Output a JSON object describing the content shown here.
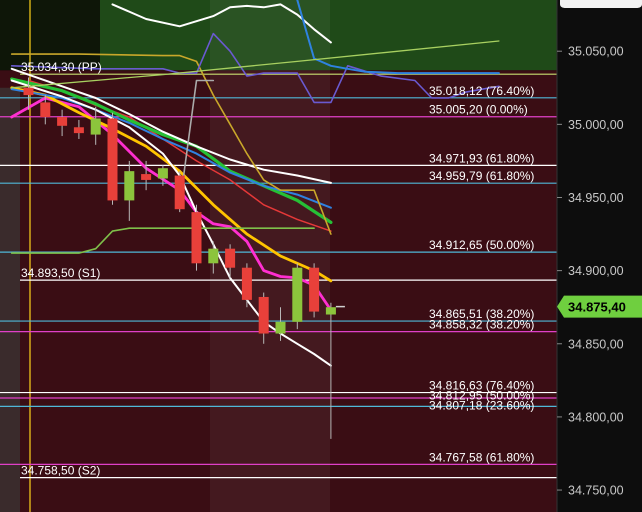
{
  "colors": {
    "background": "#0b0406",
    "zone_bear": "#3a0d14",
    "zone_bull": "#1f4a18",
    "candle_up": "#8cc43c",
    "candle_down": "#e8403a",
    "price_tag": "#6fcf3f",
    "axis_panel": "#111111"
  },
  "current_price_tag": "34.875,40",
  "chart_data": {
    "type": "candlestick",
    "ylim": [
      34735,
      35085
    ],
    "y_ticks": [
      {
        "value": 35050,
        "label": "35.050,00"
      },
      {
        "value": 35000,
        "label": "35.000,00"
      },
      {
        "value": 34950,
        "label": "34.950,00"
      },
      {
        "value": 34900,
        "label": "34.900,00"
      },
      {
        "value": 34850,
        "label": "34.850,00"
      },
      {
        "value": 34800,
        "label": "34.800,00"
      },
      {
        "value": 34750,
        "label": "34.750,00"
      }
    ],
    "current_price": 34875.4,
    "levels": [
      {
        "value": 35034.3,
        "label": "35.034,30 (PP)",
        "color": "#c8e070",
        "label_side": "left"
      },
      {
        "value": 35018.12,
        "label": "35.018,12 (76.40%)",
        "color": "#4fb8d8",
        "label_side": "right"
      },
      {
        "value": 35005.2,
        "label": "35.005,20 (0.00%)",
        "color": "#e040c8",
        "label_side": "right"
      },
      {
        "value": 34971.93,
        "label": "34.971,93 (61.80%)",
        "color": "#ffffff",
        "label_side": "right"
      },
      {
        "value": 34959.79,
        "label": "34.959,79 (61.80%)",
        "color": "#4fb8d8",
        "label_side": "right"
      },
      {
        "value": 34912.65,
        "label": "34.912,65 (50.00%)",
        "color": "#4fb8d8",
        "label_side": "right"
      },
      {
        "value": 34893.5,
        "label": "34.893,50 (S1)",
        "color": "#ffffff",
        "label_side": "left"
      },
      {
        "value": 34865.51,
        "label": "34.865,51 (38.20%)",
        "color": "#4fb8d8",
        "label_side": "right"
      },
      {
        "value": 34858.32,
        "label": "34.858,32 (38.20%)",
        "color": "#e040c8",
        "label_side": "right"
      },
      {
        "value": 34816.63,
        "label": "34.816,63 (76.40%)",
        "color": "#ffffff",
        "label_side": "right"
      },
      {
        "value": 34812.95,
        "label": "34.812,95 (50.00%)",
        "color": "#e040c8",
        "label_side": "right"
      },
      {
        "value": 34807.18,
        "label": "34.807,18 (23.60%)",
        "color": "#4fb8d8",
        "label_side": "right"
      },
      {
        "value": 34767.58,
        "label": "34.767,58 (61.80%)",
        "color": "#e040c8",
        "label_side": "right"
      },
      {
        "value": 34758.5,
        "label": "34.758,50 (S2)",
        "color": "#ffffff",
        "label_side": "left"
      }
    ],
    "candles": [
      {
        "o": 35025,
        "h": 35032,
        "l": 35010,
        "c": 35020
      },
      {
        "o": 35015,
        "h": 35020,
        "l": 35000,
        "c": 35005
      },
      {
        "o": 35005,
        "h": 35010,
        "l": 34992,
        "c": 34999
      },
      {
        "o": 34998,
        "h": 35003,
        "l": 34990,
        "c": 34994
      },
      {
        "o": 34993,
        "h": 35012,
        "l": 34986,
        "c": 35004
      },
      {
        "o": 35004,
        "h": 35008,
        "l": 34945,
        "c": 34948
      },
      {
        "o": 34948,
        "h": 34975,
        "l": 34934,
        "c": 34968
      },
      {
        "o": 34966,
        "h": 34975,
        "l": 34955,
        "c": 34962
      },
      {
        "o": 34963,
        "h": 34972,
        "l": 34958,
        "c": 34970
      },
      {
        "o": 34965,
        "h": 34968,
        "l": 34940,
        "c": 34942
      },
      {
        "o": 34940,
        "h": 34945,
        "l": 34900,
        "c": 34905
      },
      {
        "o": 34905,
        "h": 34920,
        "l": 34898,
        "c": 34915
      },
      {
        "o": 34915,
        "h": 34918,
        "l": 34895,
        "c": 34902
      },
      {
        "o": 34902,
        "h": 34905,
        "l": 34875,
        "c": 34880
      },
      {
        "o": 34882,
        "h": 34885,
        "l": 34850,
        "c": 34857
      },
      {
        "o": 34857,
        "h": 34875,
        "l": 34852,
        "c": 34865
      },
      {
        "o": 34865,
        "h": 34905,
        "l": 34860,
        "c": 34902
      },
      {
        "o": 34902,
        "h": 34905,
        "l": 34868,
        "c": 34872
      },
      {
        "o": 34870,
        "h": 34878,
        "l": 34785,
        "c": 34875
      }
    ],
    "lines": [
      {
        "color": "#e53838",
        "width": 1.5,
        "points": [
          [
            0,
            35030
          ],
          [
            2,
            35023
          ],
          [
            4,
            35013
          ],
          [
            6,
            35005
          ],
          [
            8,
            34990
          ],
          [
            10,
            34975
          ],
          [
            12,
            34962
          ],
          [
            14,
            34945
          ],
          [
            16,
            34935
          ],
          [
            18,
            34927
          ]
        ]
      },
      {
        "color": "#ff2fd0",
        "width": 2.8,
        "points": [
          [
            -1,
            35005
          ],
          [
            1,
            35018
          ],
          [
            3,
            35012
          ],
          [
            5,
            34993
          ],
          [
            7,
            34970
          ],
          [
            9,
            34955
          ],
          [
            10,
            34940
          ],
          [
            11,
            34932
          ],
          [
            12,
            34930
          ],
          [
            13,
            34920
          ],
          [
            14,
            34900
          ],
          [
            15,
            34896
          ],
          [
            16,
            34895
          ],
          [
            17,
            34890
          ],
          [
            18,
            34873
          ]
        ]
      },
      {
        "color": "#ffc400",
        "width": 2.8,
        "points": [
          [
            -1,
            35025
          ],
          [
            1,
            35020
          ],
          [
            3,
            35008
          ],
          [
            5,
            34997
          ],
          [
            7,
            34985
          ],
          [
            9,
            34968
          ],
          [
            11,
            34945
          ],
          [
            13,
            34925
          ],
          [
            15,
            34910
          ],
          [
            17,
            34900
          ],
          [
            18,
            34893
          ]
        ]
      },
      {
        "color": "#26c036",
        "width": 3.2,
        "points": [
          [
            -1,
            35031
          ],
          [
            2,
            35023
          ],
          [
            4,
            35014
          ],
          [
            6,
            35003
          ],
          [
            8,
            34993
          ],
          [
            10,
            34985
          ],
          [
            12,
            34968
          ],
          [
            14,
            34958
          ],
          [
            16,
            34948
          ],
          [
            18,
            34933
          ]
        ]
      },
      {
        "color": "#2f82e0",
        "width": 2,
        "points": [
          [
            -1,
            35024
          ],
          [
            2,
            35018
          ],
          [
            4,
            35010
          ],
          [
            6,
            35001
          ],
          [
            8,
            34990
          ],
          [
            10,
            34980
          ],
          [
            12,
            34967
          ],
          [
            14,
            34958
          ],
          [
            16,
            34952
          ],
          [
            18,
            34943
          ]
        ]
      },
      {
        "color": "#ffffff",
        "width": 2,
        "points": [
          [
            -1,
            35038
          ],
          [
            2,
            35026
          ],
          [
            4,
            35018
          ],
          [
            6,
            35007
          ],
          [
            8,
            34995
          ],
          [
            10,
            34985
          ],
          [
            12,
            34976
          ],
          [
            14,
            34969
          ],
          [
            16,
            34965
          ],
          [
            18,
            34960
          ]
        ]
      },
      {
        "color": "#ffffff",
        "width": 2,
        "points": [
          [
            -1,
            35030
          ],
          [
            2,
            35019
          ],
          [
            4,
            35010
          ],
          [
            6,
            34998
          ],
          [
            8,
            34980
          ],
          [
            9,
            34965
          ],
          [
            10,
            34940
          ],
          [
            11,
            34918
          ],
          [
            12,
            34895
          ],
          [
            13,
            34880
          ],
          [
            14,
            34865
          ],
          [
            15,
            34857
          ],
          [
            16,
            34850
          ],
          [
            17,
            34843
          ],
          [
            18,
            34835
          ]
        ]
      },
      {
        "color": "#ffffff",
        "width": 2,
        "points": [
          [
            5,
            35082
          ],
          [
            7,
            35072
          ],
          [
            9,
            35067
          ],
          [
            11,
            35074
          ],
          [
            12,
            35080
          ],
          [
            13,
            35081
          ],
          [
            14,
            35080
          ],
          [
            15,
            35082
          ],
          [
            16,
            35075
          ],
          [
            17,
            35065
          ],
          [
            18,
            35056
          ]
        ]
      },
      {
        "color": "#c9a72a",
        "width": 1.6,
        "points": [
          [
            -1,
            35048
          ],
          [
            3,
            35048
          ],
          [
            8,
            35047
          ],
          [
            9,
            35047
          ],
          [
            10,
            35043
          ],
          [
            11,
            35020
          ],
          [
            12,
            35000
          ],
          [
            13,
            34980
          ],
          [
            14,
            34962
          ],
          [
            15,
            34955
          ],
          [
            16,
            34955
          ],
          [
            17,
            34955
          ],
          [
            18,
            34925
          ]
        ]
      },
      {
        "color": "#aaaaaa",
        "width": 1.6,
        "points": [
          [
            9,
            34945
          ],
          [
            10,
            35030
          ],
          [
            11,
            35030
          ]
        ]
      },
      {
        "color": "#7fc04a",
        "width": 1.6,
        "points": [
          [
            -1,
            34912
          ],
          [
            3,
            34912
          ],
          [
            4,
            34915
          ],
          [
            5,
            34927
          ],
          [
            6,
            34929
          ],
          [
            16,
            34929
          ],
          [
            17,
            34929
          ]
        ]
      },
      {
        "color": "#6a5ad0",
        "width": 1.6,
        "points": [
          [
            -1,
            35040
          ],
          [
            4,
            35038
          ],
          [
            8,
            35038
          ],
          [
            9,
            35035
          ],
          [
            10,
            35035
          ],
          [
            11,
            35062
          ],
          [
            12,
            35050
          ],
          [
            13,
            35033
          ],
          [
            14,
            35035
          ],
          [
            16,
            35035
          ],
          [
            17,
            35015
          ],
          [
            18,
            35015
          ],
          [
            19,
            35040
          ],
          [
            21,
            35033
          ],
          [
            23,
            35030
          ],
          [
            24,
            35018
          ],
          [
            25,
            35018
          ],
          [
            26,
            35022
          ],
          [
            27,
            35024
          ],
          [
            28,
            35026
          ]
        ]
      },
      {
        "color": "#2f82e0",
        "width": 2,
        "points": [
          [
            16,
            35085
          ],
          [
            17,
            35045
          ],
          [
            18,
            35040
          ],
          [
            19,
            35038
          ],
          [
            20,
            35036
          ],
          [
            22,
            35035
          ],
          [
            24,
            35035
          ],
          [
            26,
            35035
          ],
          [
            28,
            35035
          ]
        ]
      },
      {
        "color": "#a8d060",
        "width": 1.3,
        "points": [
          [
            -1,
            35025
          ],
          [
            8,
            35034
          ],
          [
            16,
            35043
          ],
          [
            28,
            35057
          ]
        ]
      }
    ]
  }
}
